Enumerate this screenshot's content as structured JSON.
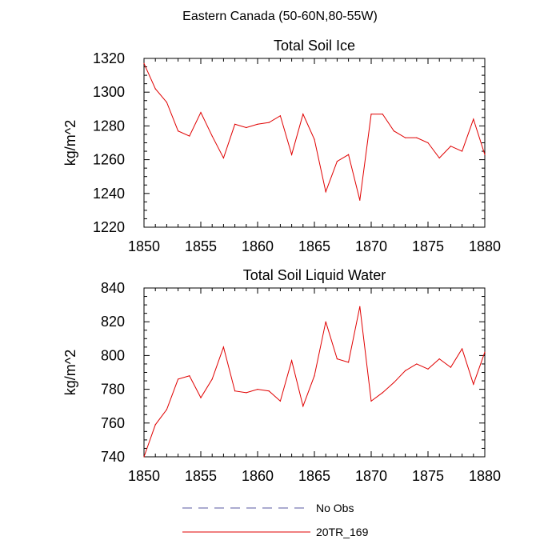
{
  "figure": {
    "main_title": "Eastern Canada (50-60N,80-55W)"
  },
  "chart_data": [
    {
      "type": "line",
      "title": "Total Soil Ice",
      "xlabel": "",
      "ylabel": "kg/m^2",
      "xlim": [
        1850,
        1880
      ],
      "ylim": [
        1220,
        1320
      ],
      "xticks": [
        1850,
        1855,
        1860,
        1865,
        1870,
        1875,
        1880
      ],
      "yticks": [
        1220,
        1240,
        1260,
        1280,
        1300,
        1320
      ],
      "grid": false,
      "x": [
        1850,
        1851,
        1852,
        1853,
        1854,
        1855,
        1856,
        1857,
        1858,
        1859,
        1860,
        1861,
        1862,
        1863,
        1864,
        1865,
        1866,
        1867,
        1868,
        1869,
        1870,
        1871,
        1872,
        1873,
        1874,
        1875,
        1876,
        1877,
        1878,
        1879,
        1880
      ],
      "series": [
        {
          "name": "20TR_169",
          "color": "#e00000",
          "values": [
            1317,
            1302,
            1294,
            1277,
            1274,
            1288,
            1274,
            1261,
            1281,
            1279,
            1281,
            1282,
            1286,
            1263,
            1287,
            1272,
            1241,
            1259,
            1263,
            1236,
            1287,
            1287,
            1277,
            1273,
            1273,
            1270,
            1261,
            1268,
            1265,
            1284,
            1263
          ]
        }
      ]
    },
    {
      "type": "line",
      "title": "Total Soil Liquid Water",
      "xlabel": "",
      "ylabel": "kg/m^2",
      "xlim": [
        1850,
        1880
      ],
      "ylim": [
        740,
        840
      ],
      "xticks": [
        1850,
        1855,
        1860,
        1865,
        1870,
        1875,
        1880
      ],
      "yticks": [
        740,
        760,
        780,
        800,
        820,
        840
      ],
      "grid": false,
      "x": [
        1850,
        1851,
        1852,
        1853,
        1854,
        1855,
        1856,
        1857,
        1858,
        1859,
        1860,
        1861,
        1862,
        1863,
        1864,
        1865,
        1866,
        1867,
        1868,
        1869,
        1870,
        1871,
        1872,
        1873,
        1874,
        1875,
        1876,
        1877,
        1878,
        1879,
        1880
      ],
      "series": [
        {
          "name": "20TR_169",
          "color": "#e00000",
          "values": [
            740,
            759,
            768,
            786,
            788,
            775,
            786,
            805,
            779,
            778,
            780,
            779,
            773,
            797,
            770,
            788,
            820,
            798,
            796,
            829,
            773,
            778,
            784,
            791,
            795,
            792,
            798,
            793,
            804,
            783,
            802
          ]
        }
      ]
    }
  ],
  "legend": {
    "placement": "bottom-center",
    "items": [
      {
        "label": "No Obs",
        "color": "#5a5aa0",
        "style": "dashed"
      },
      {
        "label": "20TR_169",
        "color": "#e00000",
        "style": "solid"
      }
    ]
  }
}
